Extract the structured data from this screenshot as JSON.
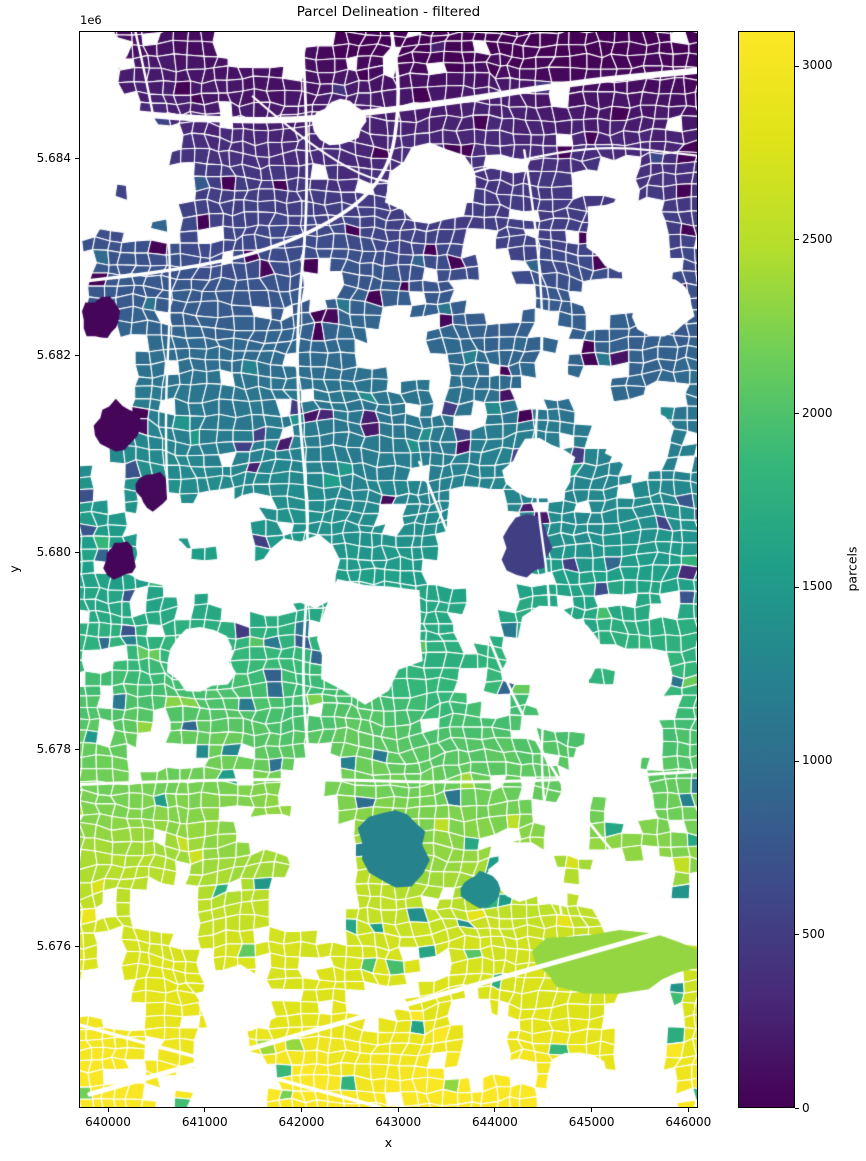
{
  "chart_data": {
    "type": "heatmap",
    "subtype": "parcel-choropleth-map",
    "title": "Parcel Delineation - filtered",
    "xlabel": "x",
    "ylabel": "y",
    "y_offset_label": "1e6",
    "xlim": [
      639700,
      646100
    ],
    "ylim": [
      5674360,
      5685290
    ],
    "grid": false,
    "x_ticks": [
      {
        "value": 640000,
        "label": "640000"
      },
      {
        "value": 641000,
        "label": "641000"
      },
      {
        "value": 642000,
        "label": "642000"
      },
      {
        "value": 643000,
        "label": "643000"
      },
      {
        "value": 644000,
        "label": "644000"
      },
      {
        "value": 645000,
        "label": "645000"
      },
      {
        "value": 646000,
        "label": "646000"
      }
    ],
    "y_ticks": [
      {
        "value": 5684000,
        "label": "5.684"
      },
      {
        "value": 5682000,
        "label": "5.682"
      },
      {
        "value": 5680000,
        "label": "5.680"
      },
      {
        "value": 5678000,
        "label": "5.678"
      },
      {
        "value": 5676000,
        "label": "5.676"
      }
    ],
    "colorbar": {
      "label": "parcels",
      "position": "right",
      "vmin": 0,
      "vmax": 3100,
      "ticks": [
        {
          "value": 0,
          "label": "0"
        },
        {
          "value": 500,
          "label": "500"
        },
        {
          "value": 1000,
          "label": "1000"
        },
        {
          "value": 1500,
          "label": "1500"
        },
        {
          "value": 2000,
          "label": "2000"
        },
        {
          "value": 2500,
          "label": "2500"
        },
        {
          "value": 3000,
          "label": "3000"
        }
      ]
    },
    "colormap": {
      "name": "viridis",
      "stops": [
        [
          0.0,
          "#440154"
        ],
        [
          0.1,
          "#482878"
        ],
        [
          0.2,
          "#3e4989"
        ],
        [
          0.3,
          "#31688e"
        ],
        [
          0.4,
          "#26828e"
        ],
        [
          0.5,
          "#1f9e89"
        ],
        [
          0.6,
          "#35b779"
        ],
        [
          0.7,
          "#6ece58"
        ],
        [
          0.8,
          "#b5de2b"
        ],
        [
          0.9,
          "#dfe318"
        ],
        [
          1.0,
          "#fde725"
        ]
      ]
    },
    "map": {
      "background_color": "#ffffff",
      "parcel_outline_color": "#ffffff",
      "value_trend": "parcel values increase from north (~0, dark purple) to south (~3100, yellow)",
      "open_areas": [
        {
          "cx": 0.567,
          "cy": 0.143,
          "r": 0.075
        },
        {
          "cx": 0.422,
          "cy": 0.083,
          "r": 0.042
        },
        {
          "cx": 0.462,
          "cy": 0.565,
          "r": 0.1
        },
        {
          "cx": 0.357,
          "cy": 0.505,
          "r": 0.068
        },
        {
          "cx": 0.777,
          "cy": 0.575,
          "r": 0.07
        },
        {
          "cx": 0.874,
          "cy": 0.189,
          "r": 0.063
        },
        {
          "cx": 0.947,
          "cy": 0.254,
          "r": 0.05
        },
        {
          "cx": 0.26,
          "cy": 0.904,
          "r": 0.066
        },
        {
          "cx": 0.131,
          "cy": 0.491,
          "r": 0.05
        },
        {
          "cx": 0.745,
          "cy": 0.408,
          "r": 0.058
        },
        {
          "cx": 0.858,
          "cy": 0.677,
          "r": 0.058
        },
        {
          "cx": 0.026,
          "cy": 0.022,
          "r": 0.058
        },
        {
          "cx": 0.809,
          "cy": 0.979,
          "r": 0.058
        },
        {
          "cx": 0.195,
          "cy": 0.584,
          "r": 0.058
        },
        {
          "cx": 0.712,
          "cy": 0.779,
          "r": 0.05
        },
        {
          "cx": 0.906,
          "cy": 0.38,
          "r": 0.053
        }
      ],
      "anomaly_parcels": [
        {
          "cx": 0.724,
          "cy": 0.48,
          "rx": 0.04,
          "ry": 0.045,
          "value": 530
        },
        {
          "cx": 0.511,
          "cy": 0.756,
          "rx": 0.058,
          "ry": 0.062,
          "value": 1250
        },
        {
          "cx": 0.648,
          "cy": 0.797,
          "rx": 0.027,
          "ry": 0.027,
          "value": 1350
        },
        {
          "cx": 0.034,
          "cy": 0.268,
          "rx": 0.03,
          "ry": 0.034,
          "value": 40
        },
        {
          "cx": 0.058,
          "cy": 0.366,
          "rx": 0.034,
          "ry": 0.04,
          "value": 40
        },
        {
          "cx": 0.118,
          "cy": 0.428,
          "rx": 0.027,
          "ry": 0.03,
          "value": 60
        },
        {
          "cx": 0.066,
          "cy": 0.491,
          "rx": 0.026,
          "ry": 0.03,
          "value": 40
        },
        {
          "cx": 0.874,
          "cy": 0.867,
          "rx": 0.135,
          "ry": 0.048,
          "value": 2330
        }
      ],
      "roads": [
        {
          "pts": [
            [
              0,
              0.07
            ],
            [
              0.25,
              0.088
            ],
            [
              0.55,
              0.07
            ],
            [
              0.8,
              0.047
            ],
            [
              1,
              0.036
            ]
          ],
          "w": 6.5
        },
        {
          "pts": [
            [
              0,
              0.232
            ],
            [
              0.2,
              0.22
            ],
            [
              0.38,
              0.188
            ],
            [
              0.5,
              0.138
            ],
            [
              0.52,
              0.058
            ],
            [
              0.505,
              0
            ]
          ],
          "w": 3.5
        },
        {
          "pts": [
            [
              0.36,
              0
            ],
            [
              0.375,
              0.14
            ],
            [
              0.345,
              0.3
            ],
            [
              0.375,
              0.47
            ],
            [
              0.355,
              0.62
            ],
            [
              0.4,
              0.78
            ]
          ],
          "w": 2.8
        },
        {
          "pts": [
            [
              0.09,
              0
            ],
            [
              0.13,
              0.1
            ],
            [
              0.15,
              0.22
            ],
            [
              0.135,
              0.38
            ],
            [
              0.155,
              0.52
            ]
          ],
          "w": 2.4
        },
        {
          "pts": [
            [
              0.72,
              0.11
            ],
            [
              0.76,
              0.25
            ],
            [
              0.73,
              0.4
            ],
            [
              0.77,
              0.55
            ],
            [
              0.74,
              0.68
            ],
            [
              0.78,
              0.82
            ]
          ],
          "w": 2.4
        },
        {
          "pts": [
            [
              0,
              0.7
            ],
            [
              0.3,
              0.693
            ],
            [
              0.65,
              0.7
            ],
            [
              1,
              0.688
            ]
          ],
          "w": 3
        },
        {
          "pts": [
            [
              0.016,
              0.988
            ],
            [
              1,
              0.828
            ]
          ],
          "w": 5
        },
        {
          "pts": [
            [
              0,
              0.924
            ],
            [
              0.485,
              1.0
            ]
          ],
          "w": 3.5
        },
        {
          "pts": [
            [
              0.55,
              0.4
            ],
            [
              0.62,
              0.5
            ],
            [
              0.7,
              0.62
            ],
            [
              0.8,
              0.72
            ],
            [
              0.92,
              0.8
            ]
          ],
          "w": 2.6
        },
        {
          "pts": [
            [
              0.28,
              0.06
            ],
            [
              0.42,
              0.13
            ],
            [
              0.55,
              0.145
            ],
            [
              0.7,
              0.12
            ],
            [
              0.85,
              0.105
            ],
            [
              1.0,
              0.115
            ]
          ],
          "w": 2.2
        }
      ]
    }
  }
}
